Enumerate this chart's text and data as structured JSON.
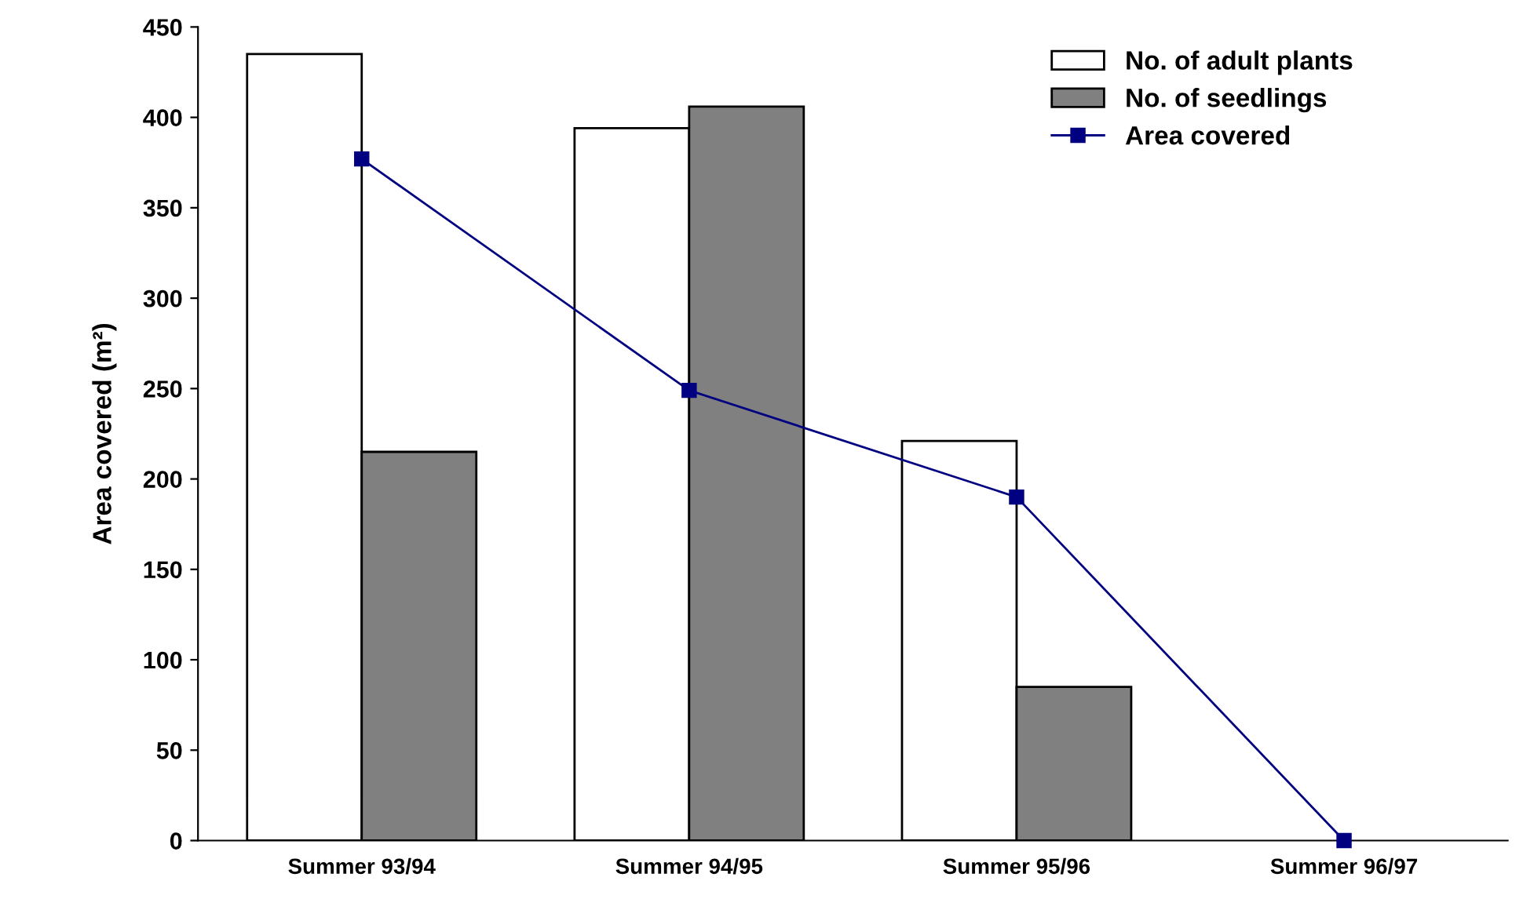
{
  "chart_data": {
    "type": "bar",
    "ylabel": "Area covered (m²)",
    "categories": [
      "Summer 93/94",
      "Summer 94/95",
      "Summer 95/96",
      "Summer 96/97"
    ],
    "series": [
      {
        "name": "No. of adult plants",
        "color": "#ffffff",
        "values": [
          435,
          394,
          221,
          null
        ]
      },
      {
        "name": "No. of seedlings",
        "color": "#808080",
        "values": [
          215,
          406,
          85,
          null
        ]
      },
      {
        "name": "Area covered",
        "type": "line",
        "color": "#000080",
        "values": [
          377,
          249,
          190,
          0
        ]
      }
    ],
    "ylim": [
      0,
      450
    ],
    "yticks": [
      0,
      50,
      100,
      150,
      200,
      250,
      300,
      350,
      400,
      450
    ],
    "grid": false,
    "legend": "top right",
    "marker": "square",
    "line_style": "solid"
  }
}
